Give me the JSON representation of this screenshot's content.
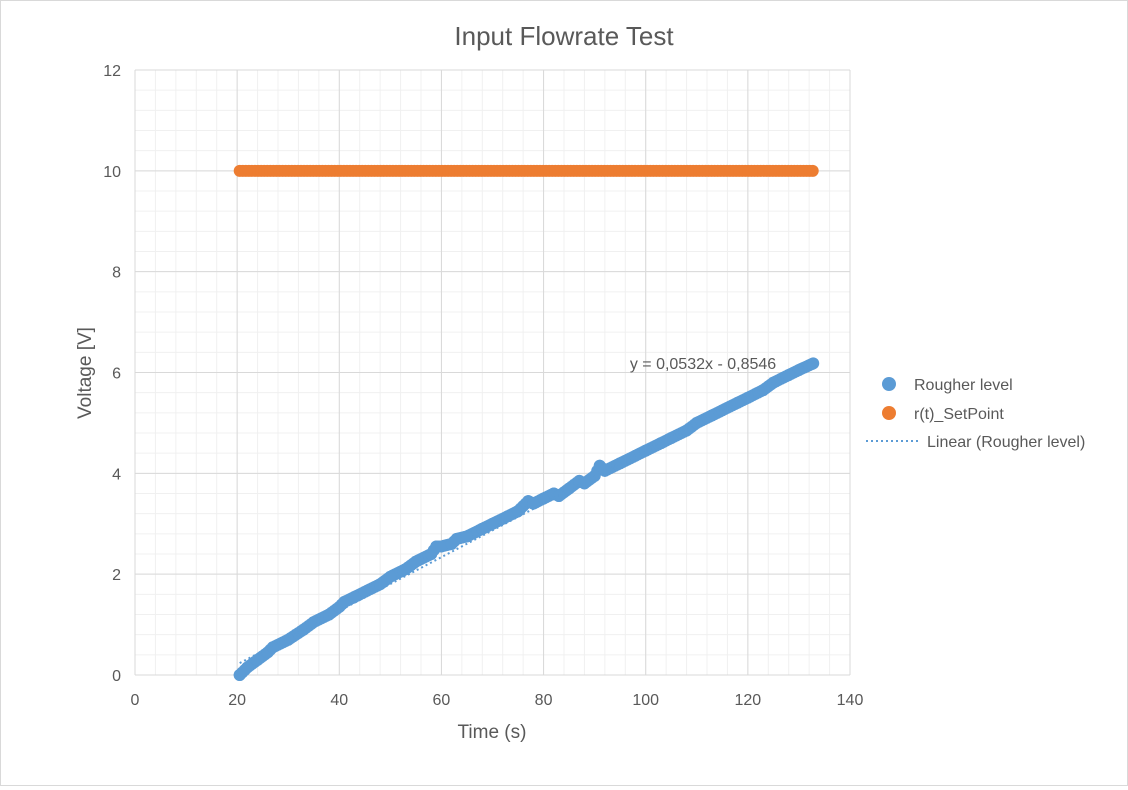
{
  "chart_data": {
    "type": "scatter",
    "title": "Input Flowrate Test",
    "xlabel": "Time (s)",
    "ylabel": "Voltage [V]",
    "xlim": [
      0,
      140
    ],
    "ylim": [
      0,
      12
    ],
    "x_ticks": [
      "0",
      "20",
      "40",
      "60",
      "80",
      "100",
      "120",
      "140"
    ],
    "y_ticks": [
      "0",
      "2",
      "4",
      "6",
      "8",
      "10",
      "12"
    ],
    "grid": true,
    "legend_position": "right",
    "series": [
      {
        "name": "Rougher level",
        "color": "#5b9bd5",
        "marker": "circle",
        "x_start": 20.5,
        "x_end": 132.8,
        "approx_points": [
          [
            20.5,
            0.0
          ],
          [
            22,
            0.15
          ],
          [
            24,
            0.3
          ],
          [
            26,
            0.45
          ],
          [
            27,
            0.55
          ],
          [
            30,
            0.7
          ],
          [
            33,
            0.9
          ],
          [
            35,
            1.05
          ],
          [
            38,
            1.2
          ],
          [
            40,
            1.35
          ],
          [
            41,
            1.45
          ],
          [
            43,
            1.55
          ],
          [
            45,
            1.65
          ],
          [
            48,
            1.8
          ],
          [
            50,
            1.95
          ],
          [
            53,
            2.1
          ],
          [
            55,
            2.25
          ],
          [
            58,
            2.4
          ],
          [
            59,
            2.55
          ],
          [
            60,
            2.55
          ],
          [
            62,
            2.6
          ],
          [
            63,
            2.7
          ],
          [
            65,
            2.75
          ],
          [
            68,
            2.9
          ],
          [
            70,
            3.0
          ],
          [
            73,
            3.15
          ],
          [
            75,
            3.25
          ],
          [
            77,
            3.45
          ],
          [
            78,
            3.4
          ],
          [
            80,
            3.5
          ],
          [
            82,
            3.6
          ],
          [
            83,
            3.55
          ],
          [
            85,
            3.7
          ],
          [
            87,
            3.85
          ],
          [
            88,
            3.8
          ],
          [
            90,
            3.95
          ],
          [
            91,
            4.15
          ],
          [
            92,
            4.05
          ],
          [
            95,
            4.2
          ],
          [
            98,
            4.35
          ],
          [
            100,
            4.45
          ],
          [
            103,
            4.6
          ],
          [
            105,
            4.7
          ],
          [
            108,
            4.85
          ],
          [
            110,
            5.0
          ],
          [
            113,
            5.15
          ],
          [
            115,
            5.25
          ],
          [
            118,
            5.4
          ],
          [
            120,
            5.5
          ],
          [
            123,
            5.65
          ],
          [
            125,
            5.8
          ],
          [
            128,
            5.95
          ],
          [
            130,
            6.05
          ],
          [
            132.8,
            6.18
          ]
        ]
      },
      {
        "name": "r(t)_SetPoint",
        "color": "#ed7d31",
        "marker": "circle",
        "x_start": 20.5,
        "x_end": 132.8,
        "value": 10
      }
    ],
    "trendline": {
      "name": "Linear (Rougher level)",
      "series": "Rougher level",
      "slope": 0.0532,
      "intercept": -0.8546,
      "equation_label": "y = 0,0532x - 0,8546",
      "style": "dotted",
      "color": "#5b9bd5"
    }
  }
}
